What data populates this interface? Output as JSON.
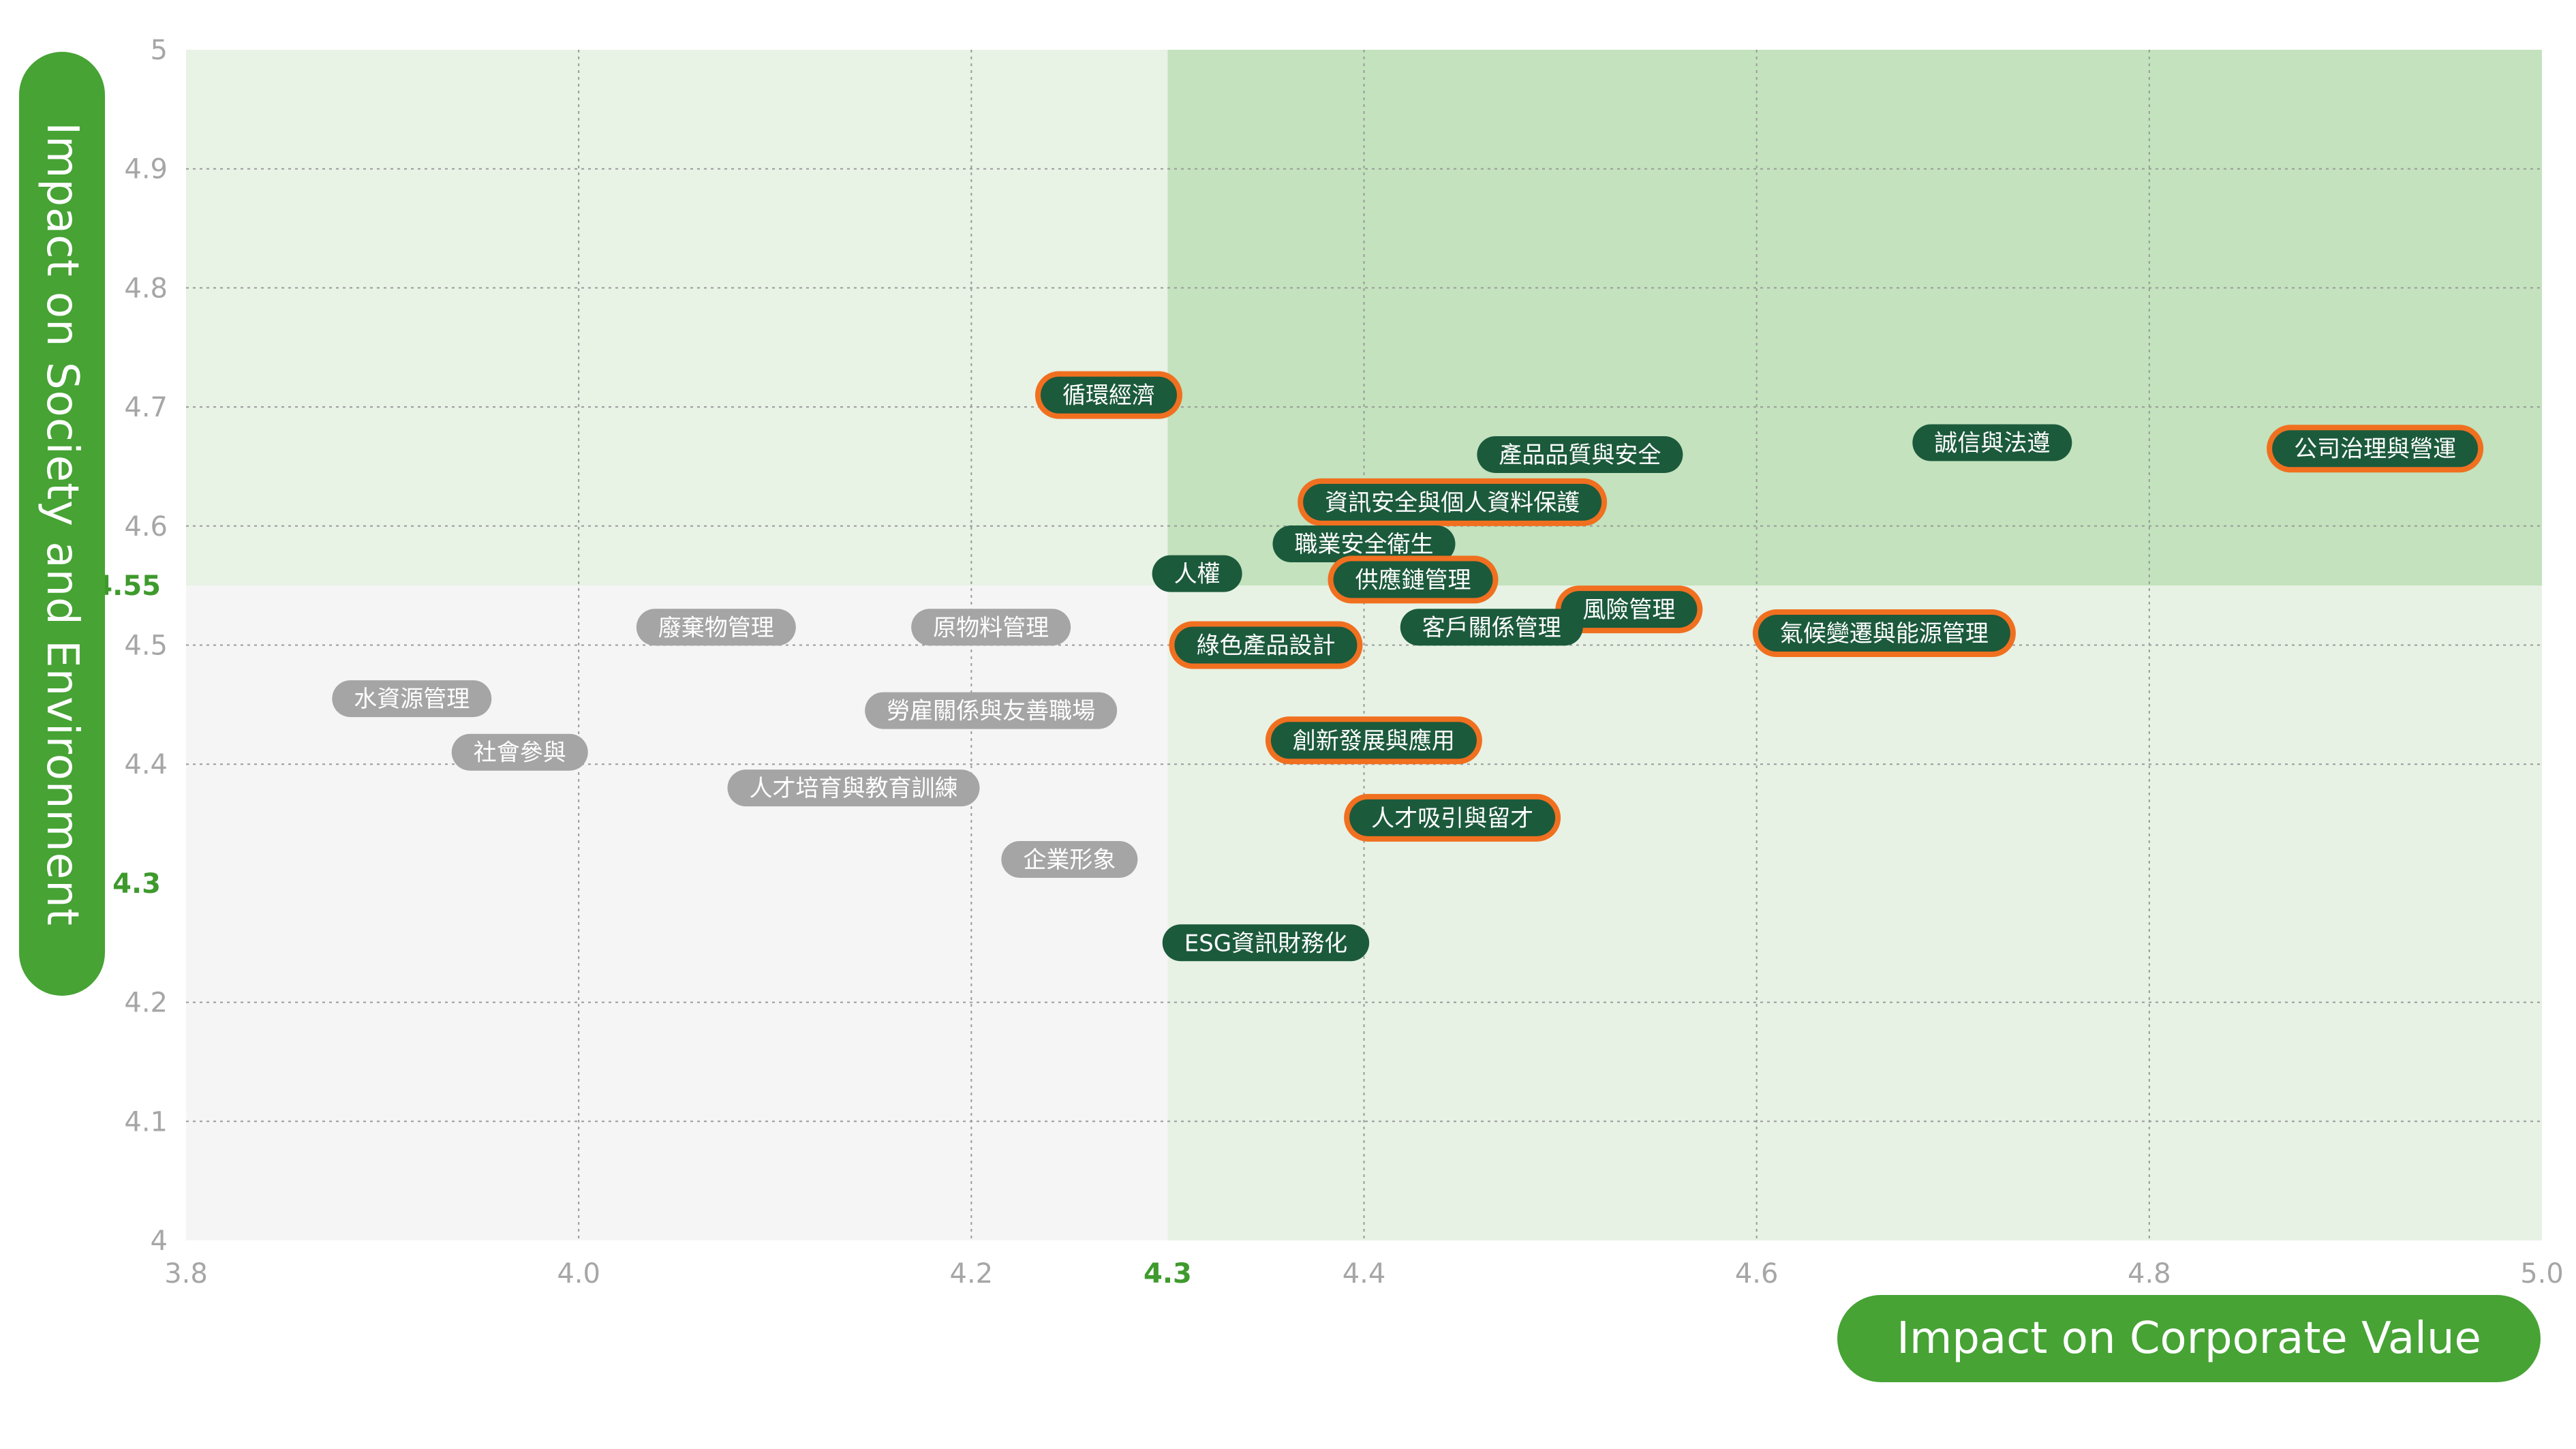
{
  "chart_data": {
    "type": "scatter",
    "xlabel": "Impact on Corporate Value",
    "ylabel": "Impact on Society and Environment",
    "xlim": [
      3.8,
      5.0
    ],
    "ylim": [
      4.0,
      5.0
    ],
    "x_ticks": [
      "3.8",
      "4.0",
      "4.2",
      "4.3",
      "4.4",
      "4.6",
      "4.8",
      "5.0"
    ],
    "y_ticks": [
      "5",
      "4.9",
      "4.8",
      "4.7",
      "4.6",
      "4.55",
      "4.5",
      "4.4",
      "4.3",
      "4.2",
      "4.1",
      "4"
    ],
    "thresholds": {
      "x": 4.3,
      "y": 4.55
    },
    "highlighted_ticks": [
      "4.3",
      "4.55"
    ],
    "grid": true,
    "colors": {
      "quadrant_top_right": "#c3e2bd",
      "quadrant_top_left": "#e8f2e5",
      "quadrant_bottom_right": "#e7f2e4",
      "quadrant_bottom_left": "#f5f5f5",
      "pill_dark_green": "#1c5a3c",
      "pill_gray": "#a5a5a5",
      "highlight_ring": "#f07020",
      "accent_green": "#46a334"
    },
    "points": [
      {
        "label": "循環經濟",
        "x": 4.27,
        "y": 4.71,
        "style": "dark",
        "highlight": true
      },
      {
        "label": "產品品質與安全",
        "x": 4.51,
        "y": 4.66,
        "style": "dark",
        "highlight": false
      },
      {
        "label": "誠信與法遵",
        "x": 4.72,
        "y": 4.67,
        "style": "dark",
        "highlight": false
      },
      {
        "label": "公司治理與營運",
        "x": 4.915,
        "y": 4.665,
        "style": "dark",
        "highlight": true
      },
      {
        "label": "資訊安全與個人資料保護",
        "x": 4.445,
        "y": 4.62,
        "style": "dark",
        "highlight": true
      },
      {
        "label": "職業安全衛生",
        "x": 4.4,
        "y": 4.585,
        "style": "dark",
        "highlight": false
      },
      {
        "label": "人權",
        "x": 4.315,
        "y": 4.56,
        "style": "dark",
        "highlight": false
      },
      {
        "label": "供應鏈管理",
        "x": 4.425,
        "y": 4.555,
        "style": "dark",
        "highlight": true
      },
      {
        "label": "風險管理",
        "x": 4.535,
        "y": 4.53,
        "style": "dark",
        "highlight": true
      },
      {
        "label": "客戶關係管理",
        "x": 4.465,
        "y": 4.515,
        "style": "dark",
        "highlight": false
      },
      {
        "label": "氣候變遷與能源管理",
        "x": 4.665,
        "y": 4.51,
        "style": "dark",
        "highlight": true
      },
      {
        "label": "綠色產品設計",
        "x": 4.35,
        "y": 4.5,
        "style": "dark",
        "highlight": true
      },
      {
        "label": "創新發展與應用",
        "x": 4.405,
        "y": 4.42,
        "style": "dark",
        "highlight": true
      },
      {
        "label": "人才吸引與留才",
        "x": 4.445,
        "y": 4.355,
        "style": "dark",
        "highlight": true
      },
      {
        "label": "ESG資訊財務化",
        "x": 4.35,
        "y": 4.25,
        "style": "dark",
        "highlight": false
      },
      {
        "label": "廢棄物管理",
        "x": 4.07,
        "y": 4.515,
        "style": "gray",
        "highlight": false
      },
      {
        "label": "原物料管理",
        "x": 4.21,
        "y": 4.515,
        "style": "gray",
        "highlight": false
      },
      {
        "label": "水資源管理",
        "x": 3.915,
        "y": 4.455,
        "style": "gray",
        "highlight": false
      },
      {
        "label": "勞雇關係與友善職場",
        "x": 4.21,
        "y": 4.445,
        "style": "gray",
        "highlight": false
      },
      {
        "label": "社會參與",
        "x": 3.97,
        "y": 4.41,
        "style": "gray",
        "highlight": false
      },
      {
        "label": "人才培育與教育訓練",
        "x": 4.14,
        "y": 4.38,
        "style": "gray",
        "highlight": false
      },
      {
        "label": "企業形象",
        "x": 4.25,
        "y": 4.32,
        "style": "gray",
        "highlight": false
      }
    ]
  }
}
